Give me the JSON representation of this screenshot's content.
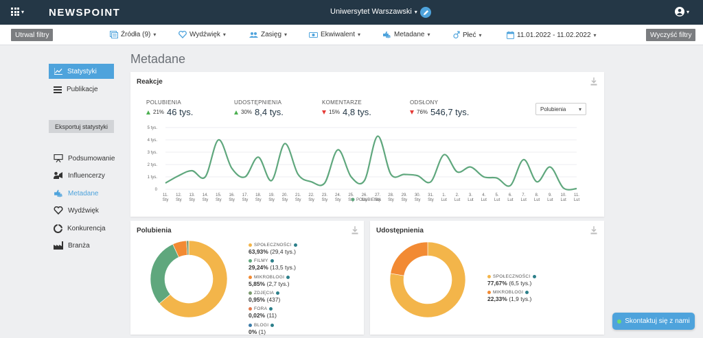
{
  "app": {
    "logo": "NEWSPOINT",
    "organization": "Uniwersytet Warszawski",
    "page_title": "Metadane"
  },
  "filters": {
    "save_label": "Utrwal filtry",
    "clear_label": "Wyczyść filtry",
    "items": [
      {
        "label": "Źródła (9)",
        "icon": "sources-icon"
      },
      {
        "label": "Wydźwięk",
        "icon": "heart-icon"
      },
      {
        "label": "Zasięg",
        "icon": "people-icon"
      },
      {
        "label": "Ekwiwalent",
        "icon": "money-icon"
      },
      {
        "label": "Metadane",
        "icon": "thumbs-icon"
      },
      {
        "label": "Płeć",
        "icon": "gender-icon"
      },
      {
        "label": "11.01.2022 - 11.02.2022",
        "icon": "calendar-icon"
      }
    ]
  },
  "sidebar": {
    "top_items": [
      {
        "label": "Statystyki",
        "active": true
      },
      {
        "label": "Publikacje",
        "active": false
      }
    ],
    "export_label": "Eksportuj statystyki",
    "items": [
      {
        "label": "Podsumowanie"
      },
      {
        "label": "Influencerzy"
      },
      {
        "label": "Metadane"
      },
      {
        "label": "Wydźwięk"
      },
      {
        "label": "Konkurencja"
      },
      {
        "label": "Branża"
      }
    ]
  },
  "reactions": {
    "title": "Reakcje",
    "select_value": "Polubienia",
    "metrics": [
      {
        "label": "POLUBIENIA",
        "pct": "21%",
        "value": "46 tys.",
        "trend": "up"
      },
      {
        "label": "UDOSTĘPNIENIA",
        "pct": "30%",
        "value": "8,4 tys.",
        "trend": "up"
      },
      {
        "label": "KOMENTARZE",
        "pct": "15%",
        "value": "4,8 tys.",
        "trend": "down"
      },
      {
        "label": "ODSŁONY",
        "pct": "76%",
        "value": "546,7 tys.",
        "trend": "down"
      }
    ]
  },
  "chart_data": [
    {
      "type": "line",
      "title": "Reakcje",
      "y_ticks": [
        "0",
        "1 tys.",
        "2 tys.",
        "3 tys.",
        "4 tys.",
        "5 tys."
      ],
      "ylim": [
        0,
        5000
      ],
      "legend": [
        "POLUBIENIA"
      ],
      "x": [
        "11.\nSty",
        "12.\nSty",
        "13.\nSty",
        "14.\nSty",
        "15.\nSty",
        "16.\nSty",
        "17.\nSty",
        "18.\nSty",
        "19.\nSty",
        "20.\nSty",
        "21.\nSty",
        "22.\nSty",
        "23.\nSty",
        "24.\nSty",
        "25.\nSty",
        "26.\nSty",
        "27.\nSty",
        "28.\nSty",
        "29.\nSty",
        "30.\nSty",
        "31.\nSty",
        "1.\nLut",
        "2.\nLut",
        "3.\nLut",
        "4.\nLut",
        "5.\nLut",
        "6.\nLut",
        "7.\nLut",
        "8.\nLut",
        "9.\nLut",
        "10.\nLut",
        "11.\nLut"
      ],
      "series": [
        {
          "name": "POLUBIENIA",
          "color": "#5fa77d",
          "values": [
            500,
            1100,
            1500,
            1000,
            4000,
            1700,
            1000,
            2600,
            700,
            3700,
            1200,
            600,
            500,
            3200,
            1000,
            700,
            4300,
            1200,
            1200,
            1100,
            600,
            2800,
            1400,
            1800,
            1000,
            900,
            300,
            2400,
            600,
            1800,
            100,
            50
          ]
        }
      ]
    },
    {
      "type": "pie",
      "title": "Polubienia",
      "slices": [
        {
          "label": "SPOŁECZNOŚCI",
          "value": 63.93,
          "display": "63,93%",
          "detail": "(29,4 tys.)",
          "color": "#f3b54a"
        },
        {
          "label": "FILMY",
          "value": 29.24,
          "display": "29,24%",
          "detail": "(13,5 tys.)",
          "color": "#5fa77d"
        },
        {
          "label": "MIKROBLOGI",
          "value": 5.85,
          "display": "5,85%",
          "detail": "(2,7 tys.)",
          "color": "#f28a33"
        },
        {
          "label": "ZDJĘCIA",
          "value": 0.95,
          "display": "0,95%",
          "detail": "(437)",
          "color": "#7a9a6e"
        },
        {
          "label": "FORA",
          "value": 0.02,
          "display": "0,02%",
          "detail": "(11)",
          "color": "#e2794c"
        },
        {
          "label": "BLOGI",
          "value": 0.0,
          "display": "0%",
          "detail": "(1)",
          "color": "#3c7ba8"
        }
      ]
    },
    {
      "type": "pie",
      "title": "Udostępnienia",
      "slices": [
        {
          "label": "SPOŁECZNOŚCI",
          "value": 77.67,
          "display": "77,67%",
          "detail": "(6,5 tys.)",
          "color": "#f3b54a"
        },
        {
          "label": "MIKROBLOGI",
          "value": 22.33,
          "display": "22,33%",
          "detail": "(1,9 tys.)",
          "color": "#f28a33"
        }
      ]
    }
  ],
  "contact": {
    "label": "Skontaktuj się z nami"
  }
}
